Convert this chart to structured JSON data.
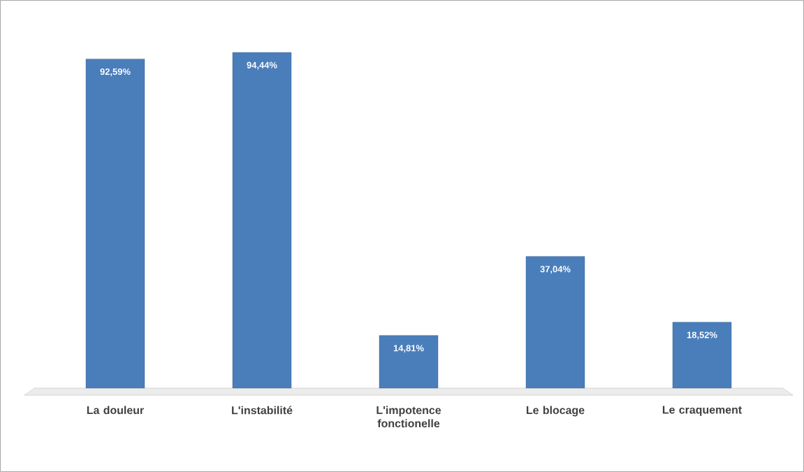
{
  "chart_data": {
    "type": "bar",
    "categories": [
      "La douleur",
      "L'instabilité",
      "L'impotence fonctionelle",
      "Le blocage",
      "Le craquement"
    ],
    "values": [
      92.59,
      94.44,
      14.81,
      37.04,
      18.52
    ],
    "value_labels": [
      "92,59%",
      "94,44%",
      "14,81%",
      "37,04%",
      "18,52%"
    ],
    "color": "#4a7ebb"
  }
}
